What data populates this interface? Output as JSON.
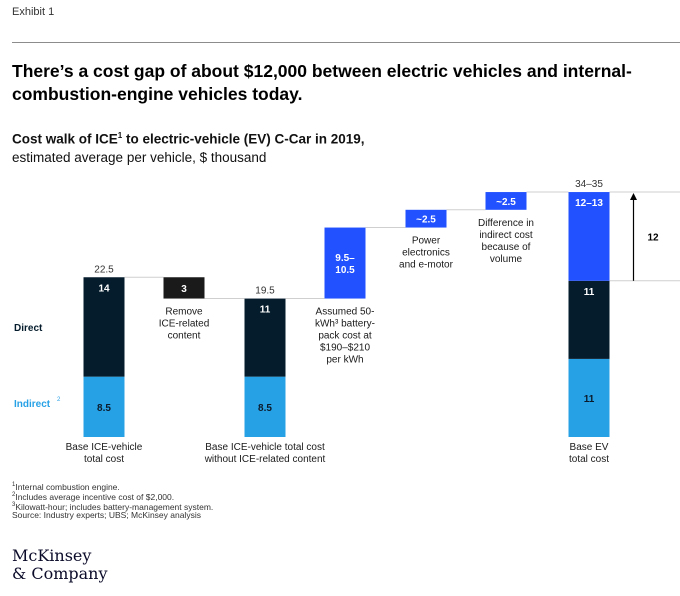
{
  "exhibit_label": "Exhibit 1",
  "headline": "There’s a cost gap of about $12,000 between electric vehicles and internal-combustion-engine vehicles today.",
  "subtitle": {
    "title_part1": "Cost walk of ICE",
    "title_sup": "1",
    "title_part2": " to electric-vehicle (EV) C-Car in 2019,",
    "line2": "estimated average per vehicle, $ thousand"
  },
  "colors": {
    "direct": "#051c2c",
    "indirect": "#27a1e6",
    "ev_premium": "#2251ff",
    "delta_grey": "#1a1a1a",
    "gap_arrow": "#000000"
  },
  "chart_data": {
    "type": "waterfall",
    "unit": "$ thousand",
    "row_labels": {
      "direct": "Direct",
      "indirect": "Indirect",
      "indirect_sup": "2"
    },
    "steps": [
      {
        "id": "base_ice",
        "kind": "total",
        "direct": 14,
        "indirect": 8.5,
        "total_label": "22.5",
        "direct_label": "14",
        "indirect_label": "8.5",
        "caption": [
          "Base ICE-vehicle",
          "total cost"
        ]
      },
      {
        "id": "remove_ice",
        "kind": "decrease",
        "value": -3,
        "value_label": "3",
        "caption": [
          "Remove",
          "ICE-related",
          "content"
        ]
      },
      {
        "id": "base_ice_wo",
        "kind": "total",
        "direct": 11,
        "indirect": 8.5,
        "total_label": "19.5",
        "direct_label": "11",
        "indirect_label": "8.5",
        "caption": [
          "Base ICE-vehicle total cost",
          "without ICE-related content"
        ]
      },
      {
        "id": "battery",
        "kind": "increase",
        "value": 10,
        "value_label": "9.5–\n10.5",
        "caption": [
          "Assumed 50-",
          "kWh³ battery-",
          "pack cost at",
          "$190–$210",
          "per kWh"
        ]
      },
      {
        "id": "power_elec",
        "kind": "increase",
        "value": 2.5,
        "value_label": "~2.5",
        "caption": [
          "Power",
          "electronics",
          "and e-motor"
        ]
      },
      {
        "id": "indirect_diff",
        "kind": "increase",
        "value": 2.5,
        "value_label": "~2.5",
        "caption": [
          "Difference in",
          "indirect cost",
          "because of",
          "volume"
        ]
      },
      {
        "id": "base_ev",
        "kind": "total",
        "direct": 11,
        "indirect": 11,
        "premium": 12.5,
        "total_label": "34–35",
        "direct_label": "11",
        "indirect_label": "11",
        "premium_label": "12–13",
        "caption": [
          "Base EV",
          "total cost"
        ]
      }
    ],
    "gap": {
      "value": 12,
      "label": "12"
    }
  },
  "footnotes": [
    {
      "sup": "1",
      "text": "Internal combustion engine."
    },
    {
      "sup": "2",
      "text": "Includes average incentive cost of $2,000."
    },
    {
      "sup": "3",
      "text": "Kilowatt-hour; includes battery-management system."
    },
    {
      "sup": "",
      "text": "Source: Industry experts; UBS; McKinsey analysis"
    }
  ],
  "logo": {
    "line1": "McKinsey",
    "line2": "& Company"
  }
}
